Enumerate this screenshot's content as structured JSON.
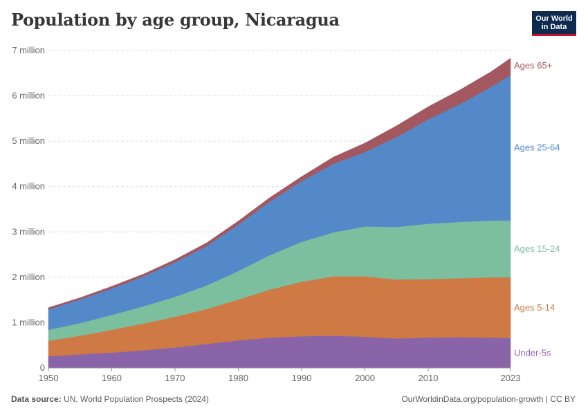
{
  "title": "Population by age group, Nicaragua",
  "logo": {
    "line1": "Our World",
    "line2": "in Data"
  },
  "footer": {
    "source_label": "Data source:",
    "source_text": "UN, World Population Prospects (2024)",
    "url_text": "OurWorldinData.org/population-growth | CC BY"
  },
  "colors": {
    "Under-5s": "#8a64a8",
    "Ages 5-14": "#cf7a44",
    "Ages 15-24": "#7bbf9f",
    "Ages 25-64": "#5489c9",
    "Ages 65+": "#a35860",
    "grid": "#dddddd",
    "axis_text": "#666666"
  },
  "chart_data": {
    "type": "area",
    "stacked": true,
    "x": [
      1950,
      1955,
      1960,
      1965,
      1970,
      1975,
      1980,
      1985,
      1990,
      1995,
      2000,
      2005,
      2010,
      2015,
      2020,
      2023
    ],
    "series": [
      {
        "name": "Under-5s",
        "values": [
          0.26,
          0.3,
          0.34,
          0.39,
          0.45,
          0.53,
          0.61,
          0.67,
          0.7,
          0.71,
          0.69,
          0.65,
          0.67,
          0.68,
          0.67,
          0.66
        ]
      },
      {
        "name": "Ages 5-14",
        "values": [
          0.34,
          0.41,
          0.5,
          0.59,
          0.68,
          0.77,
          0.9,
          1.06,
          1.2,
          1.31,
          1.33,
          1.3,
          1.29,
          1.3,
          1.33,
          1.34
        ]
      },
      {
        "name": "Ages 15-24",
        "values": [
          0.24,
          0.28,
          0.33,
          0.38,
          0.44,
          0.52,
          0.63,
          0.76,
          0.88,
          0.97,
          1.1,
          1.16,
          1.22,
          1.24,
          1.25,
          1.25
        ]
      },
      {
        "name": "Ages 25-64",
        "values": [
          0.45,
          0.52,
          0.58,
          0.66,
          0.76,
          0.87,
          1.02,
          1.18,
          1.34,
          1.51,
          1.64,
          1.98,
          2.3,
          2.6,
          2.95,
          3.21
        ]
      },
      {
        "name": "Ages 65+",
        "values": [
          0.04,
          0.04,
          0.05,
          0.05,
          0.06,
          0.07,
          0.08,
          0.09,
          0.1,
          0.15,
          0.2,
          0.25,
          0.28,
          0.31,
          0.34,
          0.37
        ]
      }
    ],
    "xlim": [
      1950,
      2023
    ],
    "ylim": [
      0,
      7
    ],
    "y_ticks": [
      0,
      1,
      2,
      3,
      4,
      5,
      6,
      7
    ],
    "y_tick_labels": [
      "0",
      "1 million",
      "2 million",
      "3 million",
      "4 million",
      "5 million",
      "6 million",
      "7 million"
    ],
    "x_ticks": [
      1950,
      1960,
      1970,
      1980,
      1990,
      2000,
      2010,
      2023
    ],
    "x_tick_labels": [
      "1950",
      "1960",
      "1970",
      "1980",
      "1990",
      "2000",
      "2010",
      "2023"
    ],
    "grid": true,
    "legend": "right (inline labels)"
  }
}
